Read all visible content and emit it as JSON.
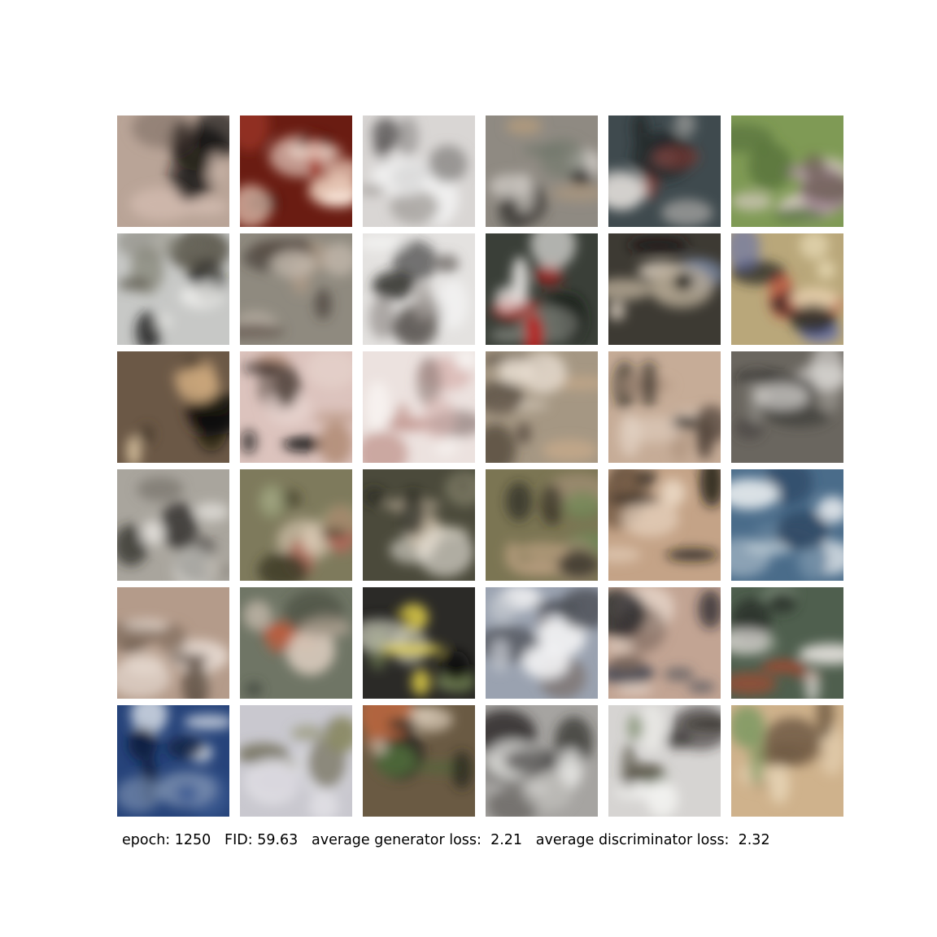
{
  "caption": {
    "epoch_label": "epoch:",
    "epoch_value": "1250",
    "fid_label": "FID:",
    "fid_value": "59.63",
    "gen_loss_label": "average generator loss:",
    "gen_loss_value": "2.21",
    "disc_loss_label": "average discriminator loss:",
    "disc_loss_value": "2.32"
  },
  "grid": {
    "rows": 6,
    "cols": 6,
    "samples": [
      {
        "bg": "#b9a497",
        "blobs": [
          "#1c1614",
          "#d9c2b6",
          "#0f0c0b",
          "#8c7a70"
        ]
      },
      {
        "bg": "#6a1c12",
        "blobs": [
          "#fbe9dd",
          "#f2d6c4",
          "#3a0d09",
          "#a43a2c"
        ]
      },
      {
        "bg": "#d9d6d4",
        "blobs": [
          "#8a8785",
          "#4b4847",
          "#f4f4f4",
          "#a8a4a1"
        ]
      },
      {
        "bg": "#8f8a82",
        "blobs": [
          "#3b3934",
          "#c9c5bf",
          "#6d756a",
          "#b19a7d"
        ]
      },
      {
        "bg": "#3f4a4e",
        "blobs": [
          "#e9e4e0",
          "#1f2629",
          "#b3b0ad",
          "#8d3a32"
        ]
      },
      {
        "bg": "#7f9a55",
        "blobs": [
          "#d8ccc4",
          "#4e6a36",
          "#a98d9c",
          "#5a4d3f"
        ]
      },
      {
        "bg": "#c7c8c6",
        "blobs": [
          "#1b1a17",
          "#f0f0ee",
          "#5d5a4e",
          "#8c8b80"
        ]
      },
      {
        "bg": "#8f8a7f",
        "blobs": [
          "#5a4e45",
          "#c1b6aa",
          "#3d3530",
          "#b29d88"
        ]
      },
      {
        "bg": "#e4e2e0",
        "blobs": [
          "#2a2826",
          "#a19c98",
          "#68635f",
          "#f6f6f5"
        ]
      },
      {
        "bg": "#3a3f38",
        "blobs": [
          "#b8201c",
          "#f1efec",
          "#1a1d19",
          "#8a8c85"
        ]
      },
      {
        "bg": "#3d3a33",
        "blobs": [
          "#b7aa95",
          "#1c1a17",
          "#7b8aa8",
          "#dcd0c0"
        ]
      },
      {
        "bg": "#b9a77a",
        "blobs": [
          "#e6d8b2",
          "#2b2a26",
          "#5c6ab0",
          "#c23a2c"
        ]
      },
      {
        "bg": "#6b5846",
        "blobs": [
          "#0e0c0a",
          "#c9a57b",
          "#4a3b2e",
          "#d8c2a0"
        ]
      },
      {
        "bg": "#dcc3bd",
        "blobs": [
          "#0f0d0c",
          "#b38e79",
          "#e8d6d0",
          "#5a4c45"
        ]
      },
      {
        "bg": "#ece2df",
        "blobs": [
          "#c49a93",
          "#f7f2f0",
          "#8d7a76",
          "#d7b3ae"
        ]
      },
      {
        "bg": "#a59783",
        "blobs": [
          "#e8ddd0",
          "#5d5145",
          "#c2a789",
          "#3a3129"
        ]
      },
      {
        "bg": "#c6ac97",
        "blobs": [
          "#1d1a17",
          "#e2d2c4",
          "#56473d",
          "#b09580"
        ]
      },
      {
        "bg": "#6a665f",
        "blobs": [
          "#e2dfdb",
          "#1c1b19",
          "#a09c96",
          "#3d3b37"
        ]
      },
      {
        "bg": "#a9a59d",
        "blobs": [
          "#2a2725",
          "#e0ddd8",
          "#6a655e",
          "#c7c2b9"
        ]
      },
      {
        "bg": "#7e7a5c",
        "blobs": [
          "#d7c7b2",
          "#3b3a26",
          "#b06a5a",
          "#9aa07a"
        ]
      },
      {
        "bg": "#4b4a3b",
        "blobs": [
          "#f1ece4",
          "#24231b",
          "#8d8a72",
          "#c7b8a2"
        ]
      },
      {
        "bg": "#7b7553",
        "blobs": [
          "#2b2720",
          "#c8a98a",
          "#6c8a55",
          "#9a8a6e"
        ]
      },
      {
        "bg": "#c4a387",
        "blobs": [
          "#1a1714",
          "#ead7c3",
          "#7a5f49",
          "#3c3129"
        ]
      },
      {
        "bg": "#4a6c8a",
        "blobs": [
          "#e8ecef",
          "#2c4662",
          "#b9c7d2",
          "#6d8aa3"
        ]
      },
      {
        "bg": "#b49b8a",
        "blobs": [
          "#f0e6de",
          "#4e4036",
          "#7d6a5a",
          "#d7c6b8"
        ]
      },
      {
        "bg": "#6f7565",
        "blobs": [
          "#c25a3a",
          "#b9aa9a",
          "#40463b",
          "#d9cabc"
        ]
      },
      {
        "bg": "#2b2a27",
        "blobs": [
          "#e9d64a",
          "#0c0c0b",
          "#7a8a5a",
          "#c9c9b8"
        ]
      },
      {
        "bg": "#9aa2b0",
        "blobs": [
          "#f2f2f3",
          "#4c4f55",
          "#c7cbd2",
          "#7a6f6a"
        ]
      },
      {
        "bg": "#c2a493",
        "blobs": [
          "#3e4652",
          "#e9d8cc",
          "#7a655a",
          "#1d1e22"
        ]
      },
      {
        "bg": "#4f5f4e",
        "blobs": [
          "#e7e3df",
          "#b0472e",
          "#2b352b",
          "#7c8a78"
        ]
      },
      {
        "bg": "#26437a",
        "blobs": [
          "#d6dde6",
          "#0f1f3f",
          "#7e92b2",
          "#3d5b94"
        ]
      },
      {
        "bg": "#c9c8cf",
        "blobs": [
          "#8a8a62",
          "#e3e2e7",
          "#6a6650",
          "#a9a7b5"
        ]
      },
      {
        "bg": "#6a5a43",
        "blobs": [
          "#e6d6c4",
          "#2c2a22",
          "#b9663e",
          "#4e6a3a"
        ]
      },
      {
        "bg": "#a6a4a1",
        "blobs": [
          "#f0efed",
          "#2e2c2a",
          "#6e6b68",
          "#c9c6c3"
        ]
      },
      {
        "bg": "#d6d4d2",
        "blobs": [
          "#4e4a3c",
          "#f2f2f0",
          "#7b8a6a",
          "#2a2824"
        ]
      },
      {
        "bg": "#cfb28c",
        "blobs": [
          "#e6d3b4",
          "#6a5540",
          "#a88c68",
          "#7e9a62"
        ]
      }
    ]
  }
}
